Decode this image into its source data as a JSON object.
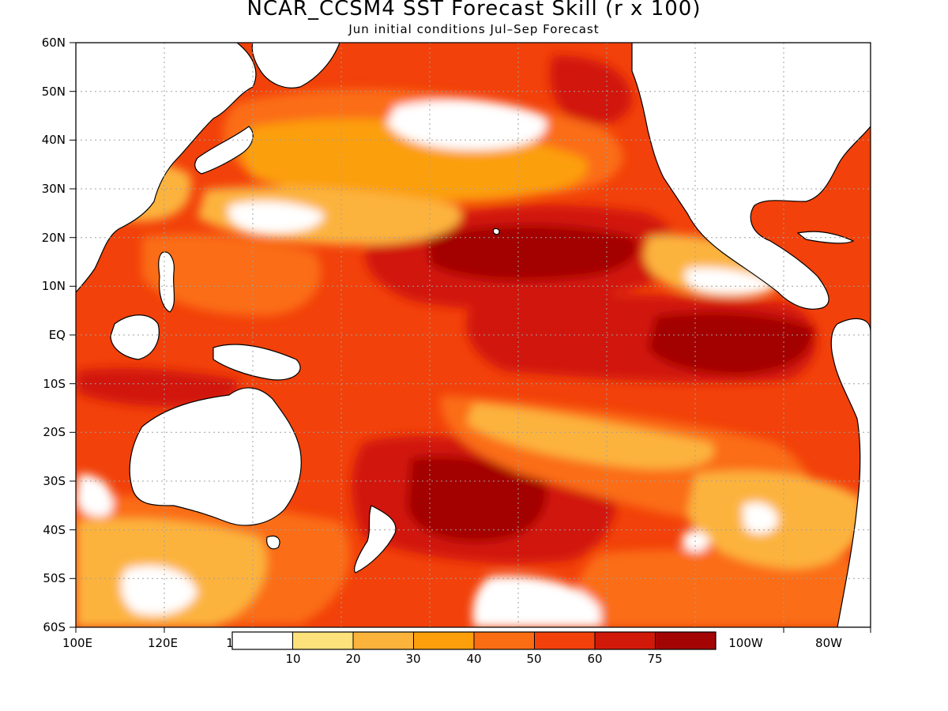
{
  "title": "NCAR_CCSM4 SST Forecast Skill (r x 100)",
  "subtitle": "Jun initial conditions  Jul–Sep Forecast",
  "lat_labels": [
    "60N",
    "50N",
    "40N",
    "30N",
    "20N",
    "10N",
    "EQ",
    "10S",
    "20S",
    "30S",
    "40S",
    "50S",
    "60S"
  ],
  "lon_labels_left": [
    "100E",
    "120E"
  ],
  "lon_labels_right": [
    "100W",
    "80W"
  ],
  "lon_label_partial": "1",
  "colorbar": {
    "colors": [
      "#ffffff",
      "#fde17a",
      "#fcb33c",
      "#fc9f0a",
      "#fb6d12",
      "#f2410a",
      "#d1190a",
      "#a30505"
    ],
    "labels": [
      "10",
      "20",
      "30",
      "40",
      "50",
      "60",
      "75"
    ]
  },
  "colors": {
    "land": "#ffffff",
    "coast": "#000000",
    "grid": "#a0a0a0",
    "ocean_base": "#f2410a"
  }
}
